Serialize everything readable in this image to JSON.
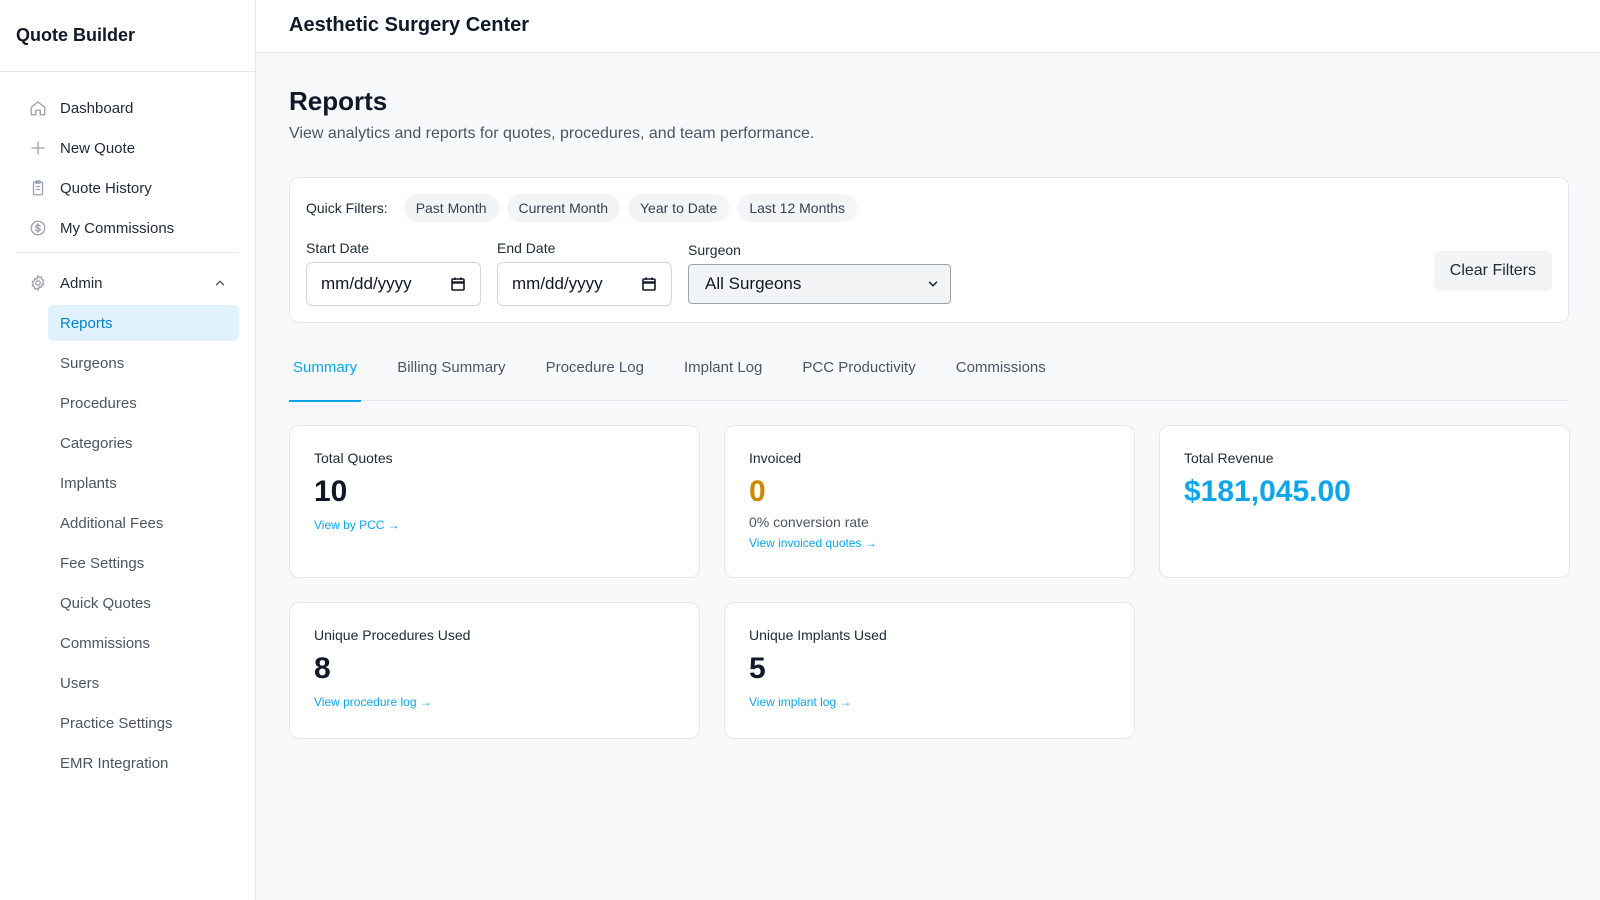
{
  "sidebar": {
    "brand": "Quote Builder",
    "items": [
      {
        "label": "Dashboard",
        "icon": "home-icon"
      },
      {
        "label": "New Quote",
        "icon": "plus-icon"
      },
      {
        "label": "Quote History",
        "icon": "clipboard-icon"
      },
      {
        "label": "My Commissions",
        "icon": "dollar-circle-icon"
      }
    ],
    "admin": {
      "label": "Admin",
      "icon": "gear-icon",
      "expanded": true,
      "items": [
        {
          "label": "Reports",
          "active": true
        },
        {
          "label": "Surgeons"
        },
        {
          "label": "Procedures"
        },
        {
          "label": "Categories"
        },
        {
          "label": "Implants"
        },
        {
          "label": "Additional Fees"
        },
        {
          "label": "Fee Settings"
        },
        {
          "label": "Quick Quotes"
        },
        {
          "label": "Commissions"
        },
        {
          "label": "Users"
        },
        {
          "label": "Practice Settings"
        },
        {
          "label": "EMR Integration"
        }
      ]
    }
  },
  "header": {
    "title": "Aesthetic Surgery Center"
  },
  "page": {
    "title": "Reports",
    "subtitle": "View analytics and reports for quotes, procedures, and team performance."
  },
  "filters": {
    "quick_label": "Quick Filters:",
    "quick": [
      "Past Month",
      "Current Month",
      "Year to Date",
      "Last 12 Months"
    ],
    "start_date": {
      "label": "Start Date",
      "value": "mm/dd/yyyy"
    },
    "end_date": {
      "label": "End Date",
      "value": "mm/dd/yyyy"
    },
    "surgeon": {
      "label": "Surgeon",
      "value": "All Surgeons"
    },
    "clear_label": "Clear Filters"
  },
  "tabs": [
    {
      "label": "Summary",
      "active": true
    },
    {
      "label": "Billing Summary"
    },
    {
      "label": "Procedure Log"
    },
    {
      "label": "Implant Log"
    },
    {
      "label": "PCC Productivity"
    },
    {
      "label": "Commissions"
    }
  ],
  "cards": {
    "total_quotes": {
      "label": "Total Quotes",
      "value": "10",
      "link": "View by PCC →"
    },
    "invoiced": {
      "label": "Invoiced",
      "value": "0",
      "note": "0% conversion rate",
      "link": "View invoiced quotes →"
    },
    "total_revenue": {
      "label": "Total Revenue",
      "value": "$181,045.00"
    },
    "unique_procedures": {
      "label": "Unique Procedures Used",
      "value": "8",
      "link": "View procedure log →"
    },
    "unique_implants": {
      "label": "Unique Implants Used",
      "value": "5",
      "link": "View implant log →"
    }
  },
  "colors": {
    "accent": "#0ea5e9",
    "amber": "#ca8a04",
    "active_bg": "#e0f2fe"
  }
}
